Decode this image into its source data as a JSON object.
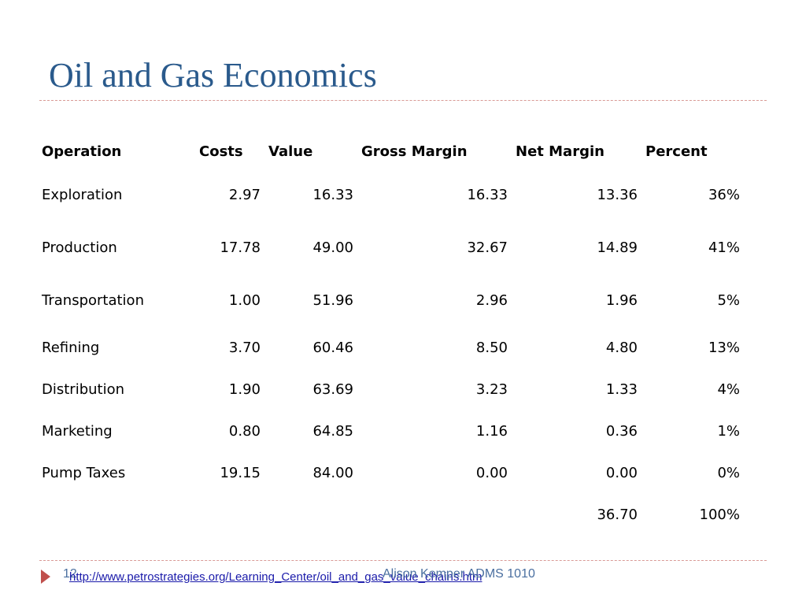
{
  "slide": {
    "title": "Oil and Gas Economics",
    "page_number": "12",
    "source_link": "http://www.petrostrategies.org/Learning_Center/oil_and_gas_value_chains.htm",
    "footer_author": "Alison Kemper ADMS 1010",
    "colors": {
      "title": "#2a5a8c",
      "rule": "#d99a96",
      "arrow": "#c0504d",
      "footer": "#4a6fa0"
    },
    "icons": {
      "bullet": "right-triangle-arrow-icon"
    }
  },
  "table": {
    "headers": [
      "Operation",
      "Costs",
      "Value",
      "Gross Margin",
      "Net Margin",
      "Percent"
    ],
    "rows": [
      [
        "Exploration",
        "2.97",
        "16.33",
        "16.33",
        "13.36",
        "36%"
      ],
      [
        "Production",
        "17.78",
        "49.00",
        "32.67",
        "14.89",
        "41%"
      ],
      [
        "Transportation",
        "1.00",
        "51.96",
        "2.96",
        "1.96",
        "5%"
      ],
      [
        "Refining",
        "3.70",
        "60.46",
        "8.50",
        "4.80",
        "13%"
      ],
      [
        "Distribution",
        "1.90",
        "63.69",
        "3.23",
        "1.33",
        "4%"
      ],
      [
        "Marketing",
        "0.80",
        "64.85",
        "1.16",
        "0.36",
        "1%"
      ],
      [
        "Pump Taxes",
        "19.15",
        "84.00",
        "0.00",
        "0.00",
        "0%"
      ],
      [
        "",
        "",
        "",
        "",
        "36.70",
        "100%"
      ]
    ]
  }
}
